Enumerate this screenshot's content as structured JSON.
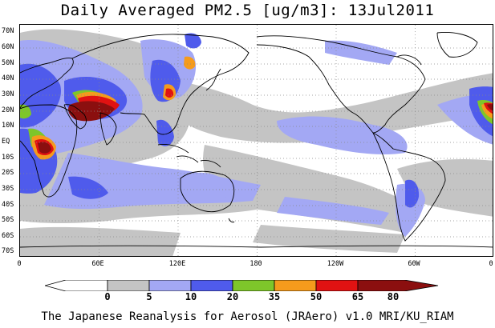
{
  "title": "Daily Averaged PM2.5 [ug/m3]: 13Jul2011",
  "lat_labels": [
    "70N",
    "60N",
    "50N",
    "40N",
    "30N",
    "20N",
    "10N",
    "EQ",
    "10S",
    "20S",
    "30S",
    "40S",
    "50S",
    "60S",
    "70S"
  ],
  "lon_labels": [
    "0",
    "60E",
    "120E",
    "180",
    "120W",
    "60W",
    "0"
  ],
  "colorbar": {
    "ticks": [
      "0",
      "5",
      "10",
      "20",
      "35",
      "50",
      "65",
      "80"
    ],
    "colors": [
      "#ffffff",
      "#c4c4c4",
      "#a3a8f4",
      "#4f5bec",
      "#7ec62a",
      "#f59b1c",
      "#e01212",
      "#8b0f0f"
    ]
  },
  "footer": "The Japanese Reanalysis for Aerosol (JRAero) v1.0 MRI/KU_RIAM"
}
